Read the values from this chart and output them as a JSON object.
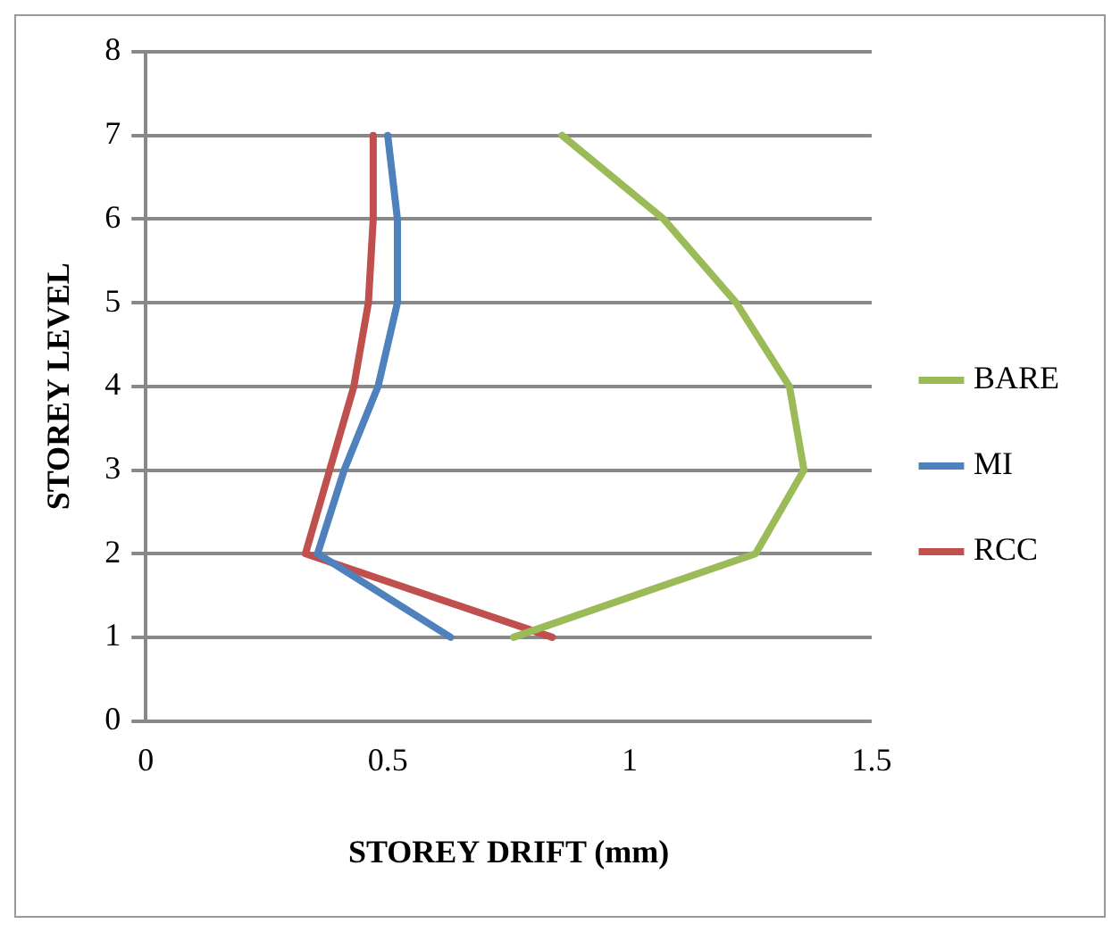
{
  "chart_data": {
    "type": "line",
    "xlabel": "STOREY DRIFT (mm)",
    "ylabel": "STOREY LEVEL",
    "series": [
      {
        "name": "BARE",
        "color": "#9bbb59",
        "x": [
          0.76,
          1.26,
          1.36,
          1.33,
          1.22,
          1.07,
          0.86
        ],
        "values": [
          1,
          2,
          3,
          4,
          5,
          6,
          7
        ]
      },
      {
        "name": "MI",
        "color": "#4f81bd",
        "x": [
          0.63,
          0.355,
          0.41,
          0.48,
          0.52,
          0.52,
          0.5
        ],
        "values": [
          1,
          2,
          3,
          4,
          5,
          6,
          7
        ]
      },
      {
        "name": "RCC",
        "color": "#c0504d",
        "x": [
          0.84,
          0.33,
          0.38,
          0.43,
          0.46,
          0.47,
          0.47
        ],
        "values": [
          1,
          2,
          3,
          4,
          5,
          6,
          7
        ]
      }
    ],
    "xlim": [
      0,
      1.5
    ],
    "xticks": [
      0,
      0.5,
      1,
      1.5
    ],
    "ylim": [
      0,
      8
    ],
    "yticks": [
      0,
      1,
      2,
      3,
      4,
      5,
      6,
      7,
      8
    ],
    "grid": "y",
    "legend": "right",
    "marker": "none",
    "line_style": "solid"
  }
}
